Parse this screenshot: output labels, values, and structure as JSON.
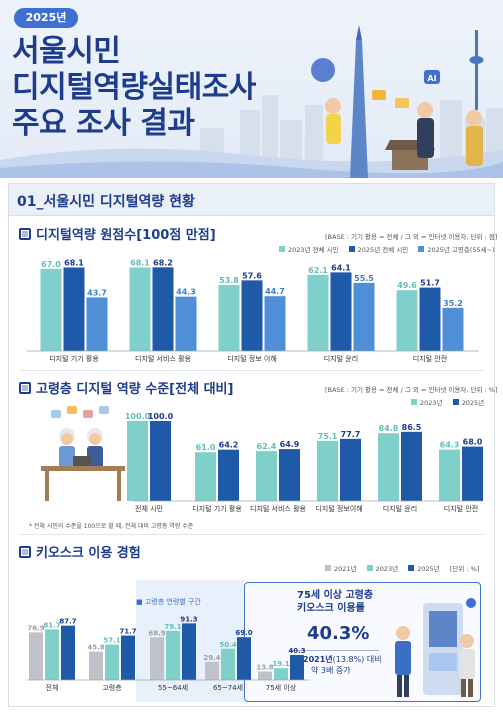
{
  "header": {
    "year_badge": "2025년",
    "title_lines": [
      "서울시민",
      "디지털역량실태조사",
      "주요 조사 결과"
    ]
  },
  "section": {
    "title": "01_서울시민 디지털역량 현황"
  },
  "colors": {
    "c2021": "#bfc3c9",
    "c2023": "#7fd0cb",
    "c2025": "#1f5aa8",
    "c2025elder": "#4e8fd8",
    "accent": "#1e3c8c"
  },
  "chart1": {
    "subtitle": "디지털역량 원점수[100점 만점]",
    "base_note": "[BASE : 기기 활용 = 전체 / 그 외 = 인터넷 이용자, 단위 : 점]",
    "legend": [
      "2023년 전체 시민",
      "2025년 전체 시민",
      "2025년 고령층(55세~)"
    ]
  },
  "chart2": {
    "subtitle": "고령층 디지털 역량 수준[전체 대비]",
    "base_note": "[BASE : 기기 활용 = 전체 / 그 외 = 인터넷 이용자, 단위 : %]",
    "legend": [
      "2023년",
      "2025년"
    ],
    "footnote": "* 전체 시민의 수준을 100으로 할 때, 전체 대비 고령층 역량 수준"
  },
  "chart3": {
    "subtitle": "키오스크 이용 경험",
    "legend": [
      "2021년",
      "2023년",
      "2025년"
    ],
    "unit": "[단위 : %]",
    "age_group_label": "고령층 연령별 구간",
    "callout": {
      "title_line1": "75세 이상 고령층",
      "title_line2": "키오스크 이용률",
      "big_value": "40.3%",
      "sub_line1_a": "2021년",
      "sub_line1_b": "(13.8%) 대비",
      "sub_line2": "약 3배 증가"
    }
  },
  "chart_data": [
    {
      "type": "bar",
      "title": "디지털역량 원점수[100점 만점]",
      "categories": [
        "디지털 기기 활용",
        "디지털 서비스 활용",
        "디지털 정보 이해",
        "디지털 윤리",
        "디지털 안전"
      ],
      "series": [
        {
          "name": "2023년 전체 시민",
          "values": [
            67.0,
            68.1,
            53.8,
            62.1,
            49.6
          ]
        },
        {
          "name": "2025년 전체 시민",
          "values": [
            68.1,
            68.2,
            57.6,
            64.1,
            51.7
          ]
        },
        {
          "name": "2025년 고령층(55세~)",
          "values": [
            43.7,
            44.3,
            44.7,
            55.5,
            35.2
          ]
        }
      ],
      "ylim": [
        0,
        75
      ],
      "legend_position": "top-right",
      "grid": false
    },
    {
      "type": "bar",
      "title": "고령층 디지털 역량 수준[전체 대비]",
      "categories": [
        "전체 시민",
        "디지털 기기 활용",
        "디지털 서비스 활용",
        "디지털 정보이해",
        "디지털 윤리",
        "디지털 안전"
      ],
      "series": [
        {
          "name": "2023년",
          "values": [
            100.0,
            61.0,
            62.4,
            75.1,
            84.8,
            64.3
          ]
        },
        {
          "name": "2025년",
          "values": [
            100.0,
            64.2,
            64.9,
            77.7,
            86.5,
            68.0
          ]
        }
      ],
      "ylim": [
        0,
        105
      ],
      "legend_position": "top-right",
      "grid": false
    },
    {
      "type": "bar",
      "title": "키오스크 이용 경험",
      "categories": [
        "전체",
        "고령층",
        "55~64세",
        "65~74세",
        "75세 이상"
      ],
      "series": [
        {
          "name": "2021년",
          "values": [
            76.9,
            45.8,
            68.9,
            29.4,
            13.8
          ]
        },
        {
          "name": "2023년",
          "values": [
            81.7,
            57.1,
            79.1,
            50.4,
            19.1
          ]
        },
        {
          "name": "2025년",
          "values": [
            87.7,
            71.7,
            91.3,
            69.0,
            40.3
          ]
        }
      ],
      "ylim": [
        0,
        100
      ],
      "legend_position": "top-right",
      "grid": false
    }
  ]
}
